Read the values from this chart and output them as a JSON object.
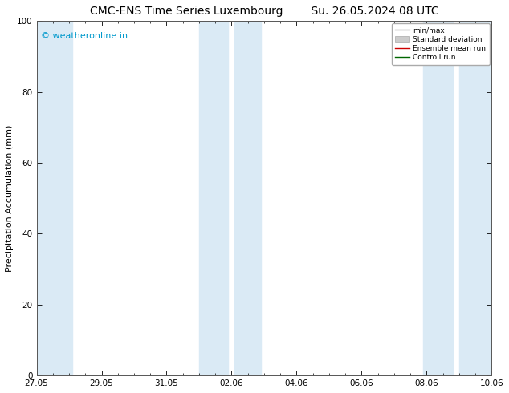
{
  "title": "CMC-ENS Time Series Luxembourg",
  "title2": "Su. 26.05.2024 08 UTC",
  "ylabel": "Precipitation Accumulation (mm)",
  "watermark": "© weatheronline.in",
  "watermark_color": "#0099cc",
  "ylim": [
    0,
    100
  ],
  "yticks": [
    0,
    20,
    40,
    60,
    80,
    100
  ],
  "xtick_labels": [
    "27.05",
    "29.05",
    "31.05",
    "02.06",
    "04.06",
    "06.06",
    "08.06",
    "10.06"
  ],
  "xtick_positions": [
    0,
    2,
    4,
    6,
    8,
    10,
    12,
    14
  ],
  "band_color": "#daeaf5",
  "legend_labels": [
    "min/max",
    "Standard deviation",
    "Ensemble mean run",
    "Controll run"
  ],
  "background_color": "#ffffff",
  "title_fontsize": 10,
  "tick_fontsize": 7.5,
  "ylabel_fontsize": 8
}
